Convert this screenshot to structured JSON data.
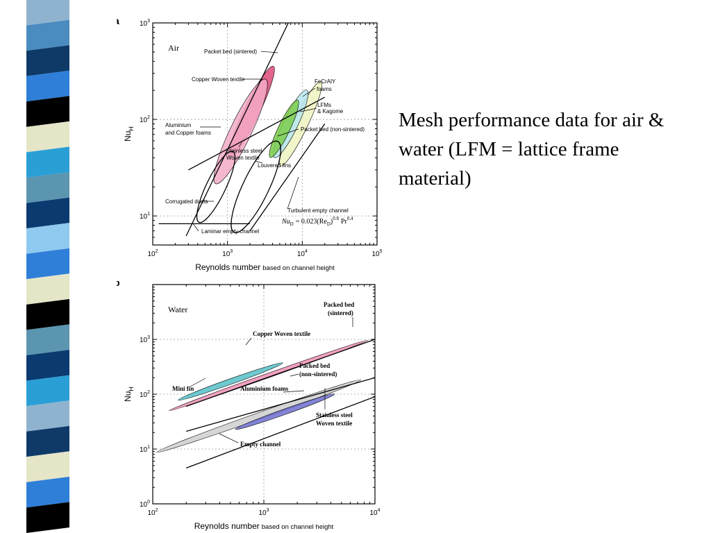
{
  "slide": {
    "text": "Mesh performance data for air & water  (LFM = lattice frame material)",
    "stripe_colors": [
      "#8fb3cf",
      "#4a8bc0",
      "#0f3a68",
      "#2f7fd8",
      "#000000",
      "#e5e5c8",
      "#2a9fd6",
      "#5b95b0",
      "#0a3a70",
      "#8fc9ef",
      "#2f7fd8",
      "#e5e5c8",
      "#000000",
      "#5b95b0",
      "#0a3a70",
      "#2a9fd6",
      "#8fb3cf",
      "#0f3a68",
      "#e5e5c8",
      "#2f7fd8",
      "#000000"
    ]
  },
  "chart_data": [
    {
      "type": "scatter",
      "panel_label": "a",
      "fluid_label": "Air",
      "xlabel": "Reynolds number",
      "xlabel_suffix": "based on channel height",
      "ylabel_main": "Nu",
      "ylabel_sub": "H",
      "x_scale": "log",
      "y_scale": "log",
      "xlim": [
        100,
        100000
      ],
      "ylim": [
        5,
        1000
      ],
      "x_ticks": [
        {
          "v": 100,
          "m": "10",
          "e": "2"
        },
        {
          "v": 1000,
          "m": "10",
          "e": "3"
        },
        {
          "v": 10000,
          "m": "10",
          "e": "4"
        },
        {
          "v": 100000,
          "m": "10",
          "e": "5"
        }
      ],
      "y_ticks": [
        {
          "v": 10,
          "m": "10",
          "e": "1"
        },
        {
          "v": 100,
          "m": "10",
          "e": "2"
        },
        {
          "v": 1000,
          "m": "10",
          "e": "3"
        }
      ],
      "lines": [
        {
          "name": "Packet bed (sintered)",
          "points": [
            [
              280,
              6.2
            ],
            [
              6500,
              1000
            ]
          ]
        },
        {
          "name": "Packet bed (non-sintered)",
          "points": [
            [
              300,
              30
            ],
            [
              20000,
              170
            ]
          ]
        },
        {
          "name": "Turbulent empty channel",
          "points": [
            [
              2000,
              7
            ],
            [
              20000,
              90
            ]
          ]
        },
        {
          "name": "Laminar empty channel",
          "points": [
            [
              120,
              8.3
            ],
            [
              2000,
              8.3
            ]
          ]
        }
      ],
      "regions": [
        {
          "name": "Copper Woven textile",
          "color": "#dc4a78",
          "center": [
            2100,
            120
          ],
          "major_decades": 1.35,
          "minor_decades": 0.16
        },
        {
          "name": "Aluminium and Copper foams",
          "color": "#f3aac8",
          "center": [
            1500,
            75
          ],
          "major_decades": 1.55,
          "minor_decades": 0.22
        },
        {
          "name": "FeCrAlY foams",
          "color": "#f0f2c0",
          "center": [
            9500,
            90
          ],
          "major_decades": 1.25,
          "minor_decades": 0.15
        },
        {
          "name": "LFMs & Kagome",
          "color": "#b6e8ee",
          "center": [
            7000,
            90
          ],
          "major_decades": 1.0,
          "minor_decades": 0.15
        },
        {
          "name": "Stainless steel Woven textile",
          "color": "#7acc4a",
          "center": [
            5700,
            80
          ],
          "major_decades": 0.85,
          "minor_decades": 0.12
        },
        {
          "name": "Louvered fins",
          "outline": true,
          "center": [
            2400,
            20
          ],
          "major_decades": 1.35,
          "minor_decades": 0.27
        },
        {
          "name": "Corrugated ducts",
          "outline": true,
          "center": [
            700,
            20
          ],
          "major_decades": 1.05,
          "minor_decades": 0.2
        }
      ],
      "annotations": [
        {
          "text": "Packet bed (sintered)"
        },
        {
          "text": "Copper Woven textile"
        },
        {
          "text": "FeCrAlY"
        },
        {
          "text": "foams"
        },
        {
          "text": "LFMs"
        },
        {
          "text": "& Kagome"
        },
        {
          "text": "Aluminium"
        },
        {
          "text": "and Copper foams"
        },
        {
          "text": "Packet bed (non-sintered)"
        },
        {
          "text": "Stainless steel"
        },
        {
          "text": "Woven textile"
        },
        {
          "text": "Louvered fins"
        },
        {
          "text": "Corrugated ducts"
        },
        {
          "text": "Turbulent empty channel"
        },
        {
          "text": "Laminar empty channel"
        }
      ],
      "equation": {
        "lhs": "Nu",
        "lhs_sub": "D",
        "mid": "= 0.023(Re",
        "mid_sub": "D",
        "mid_sup": "0.8",
        "tail": "Pr",
        "tail_sup": "0.4"
      }
    },
    {
      "type": "scatter",
      "panel_label": "b",
      "fluid_label": "Water",
      "xlabel": "Reynolds number",
      "xlabel_suffix": "based on channel height",
      "ylabel_main": "Nu",
      "ylabel_sub": "H",
      "x_scale": "log",
      "y_scale": "log",
      "xlim": [
        100,
        10000
      ],
      "ylim": [
        1,
        10000
      ],
      "x_ticks": [
        {
          "v": 100,
          "m": "10",
          "e": "2"
        },
        {
          "v": 1000,
          "m": "10",
          "e": "3"
        },
        {
          "v": 10000,
          "m": "10",
          "e": "4"
        }
      ],
      "y_ticks": [
        {
          "v": 1,
          "m": "10",
          "e": "0"
        },
        {
          "v": 10,
          "m": "10",
          "e": "1"
        },
        {
          "v": 100,
          "m": "10",
          "e": "2"
        },
        {
          "v": 1000,
          "m": "10",
          "e": "3"
        }
      ],
      "lines": [
        {
          "name": "Packed bed (sintered)",
          "points": [
            [
              200,
              60
            ],
            [
              10000,
              1000
            ]
          ]
        },
        {
          "name": "Packed bed (non-sintered)",
          "points": [
            [
              200,
              21
            ],
            [
              10000,
              200
            ]
          ]
        },
        {
          "name": "Empty channel",
          "points": [
            [
              200,
              4.5
            ],
            [
              10000,
              90
            ]
          ]
        }
      ],
      "regions": [
        {
          "name": "Copper Woven textile",
          "color": "#ef8fb5",
          "center": [
            1100,
            220
          ],
          "major_decades": 1.9,
          "minor_decades": 0.08
        },
        {
          "name": "Mini fin",
          "color": "#56bfc8",
          "center": [
            500,
            170
          ],
          "major_decades": 1.0,
          "minor_decades": 0.1
        },
        {
          "name": "Stainless steel Woven textile",
          "color": "#cfcfcf",
          "center": [
            900,
            40
          ],
          "major_decades": 1.95,
          "minor_decades": 0.12
        },
        {
          "name": "Aluminium foams",
          "color": "#6f6fcf",
          "center": [
            1550,
            48
          ],
          "major_decades": 0.95,
          "minor_decades": 0.1
        }
      ],
      "annotations": [
        {
          "text": "Packed bed"
        },
        {
          "text": "(sintered)"
        },
        {
          "text": "Copper Woven textile"
        },
        {
          "text": "Packed bed"
        },
        {
          "text": "(non-sintered)"
        },
        {
          "text": "Mini fin"
        },
        {
          "text": "Aluminium foams"
        },
        {
          "text": "Stainless steel"
        },
        {
          "text": "Woven textile"
        },
        {
          "text": "Empty channel"
        }
      ]
    }
  ]
}
